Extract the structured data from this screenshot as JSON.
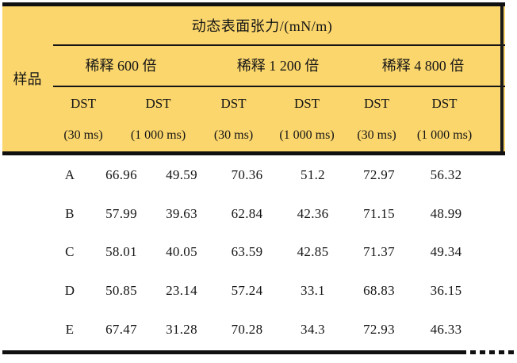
{
  "table": {
    "title": "动态表面张力/(mN/m)",
    "sample_header": "样品",
    "groups": [
      {
        "label": "稀释 600 倍"
      },
      {
        "label": "稀释 1 200 倍"
      },
      {
        "label": "稀释 4 800 倍"
      }
    ],
    "subheaders": [
      {
        "line1": "DST",
        "line2": "(30 ms)"
      },
      {
        "line1": "DST",
        "line2": "(1 000 ms)"
      },
      {
        "line1": "DST",
        "line2": "(30 ms)"
      },
      {
        "line1": "DST",
        "line2": "(1 000 ms)"
      },
      {
        "line1": "DST",
        "line2": "(30 ms)"
      },
      {
        "line1": "DST",
        "line2": "(1 000 ms)"
      }
    ],
    "rows": [
      {
        "sample": "A",
        "values": [
          "66.96",
          "49.59",
          "70.36",
          "51.2",
          "72.97",
          "56.32"
        ]
      },
      {
        "sample": "B",
        "values": [
          "57.99",
          "39.63",
          "62.84",
          "42.36",
          "71.15",
          "48.99"
        ]
      },
      {
        "sample": "C",
        "values": [
          "58.01",
          "40.05",
          "63.59",
          "42.85",
          "71.37",
          "49.34"
        ]
      },
      {
        "sample": "D",
        "values": [
          "50.85",
          "23.14",
          "57.24",
          "33.1",
          "68.83",
          "36.15"
        ]
      },
      {
        "sample": "E",
        "values": [
          "67.47",
          "31.28",
          "70.28",
          "34.3",
          "72.93",
          "46.33"
        ]
      }
    ]
  },
  "colors": {
    "header_background": "#FBD66C",
    "rule_black": "#101010",
    "text": "#151515"
  }
}
